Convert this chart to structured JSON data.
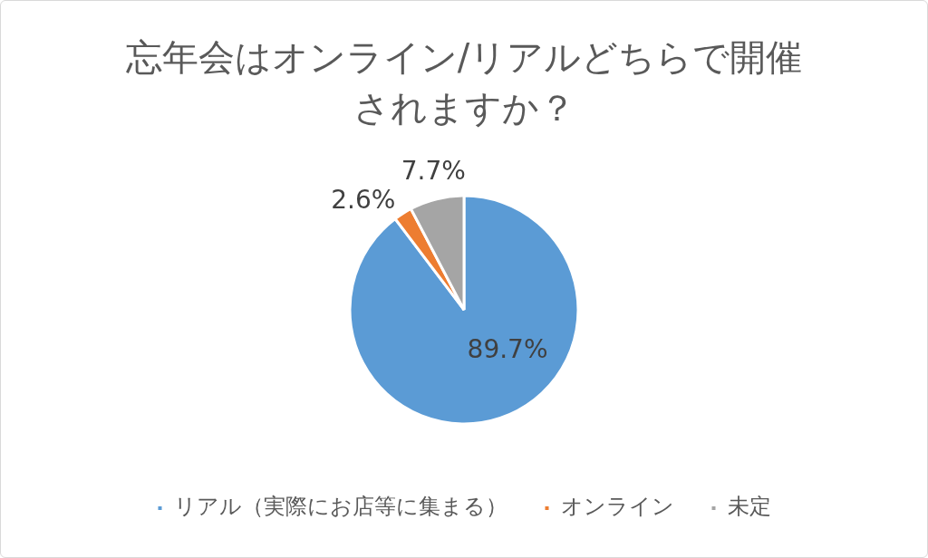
{
  "chart_data": {
    "type": "pie",
    "title": "忘年会はオンライン/リアルどちらで開催されますか？",
    "categories": [
      "リアル（実際にお店等に集まる）",
      "オンライン",
      "未定"
    ],
    "values": [
      89.7,
      2.6,
      7.7
    ],
    "colors": [
      "#5b9bd5",
      "#ed7d31",
      "#a5a5a5"
    ],
    "value_labels": [
      "89.7%",
      "2.6%",
      "7.7%"
    ],
    "legend": "bottom"
  }
}
